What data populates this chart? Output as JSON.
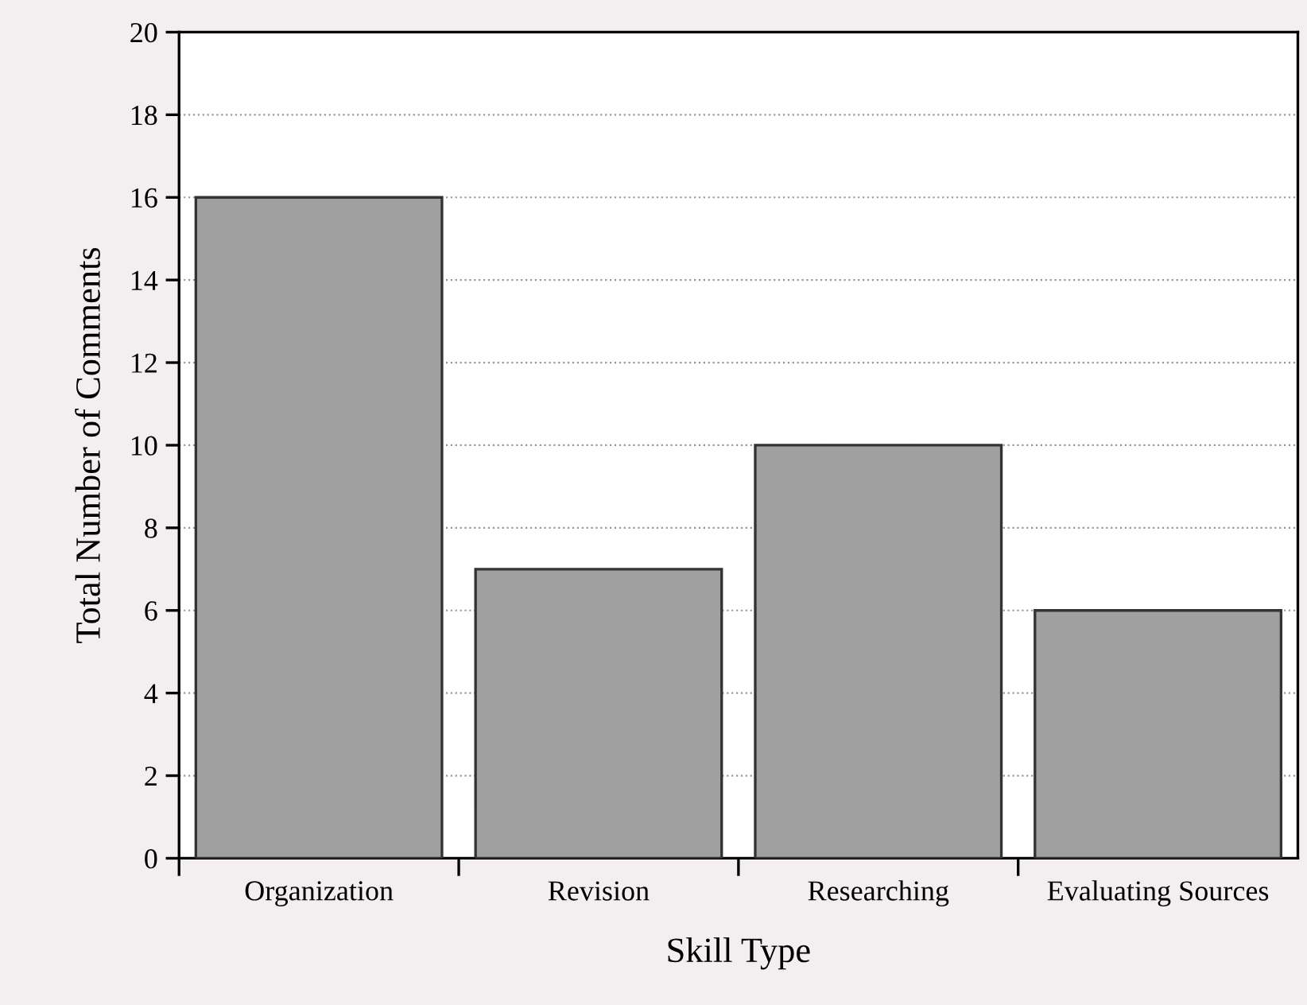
{
  "chart_data": {
    "type": "bar",
    "xlabel": "Skill Type",
    "ylabel": "Total Number of Comments",
    "categories": [
      "Organization",
      "Revision",
      "Researching",
      "Evaluating Sources"
    ],
    "values": [
      16,
      7,
      10,
      6
    ],
    "color": "#a0a0a0",
    "ylim": [
      0,
      20
    ],
    "yticks": [
      0,
      2,
      4,
      6,
      8,
      10,
      12,
      14,
      16,
      18,
      20
    ],
    "grid": "y"
  }
}
